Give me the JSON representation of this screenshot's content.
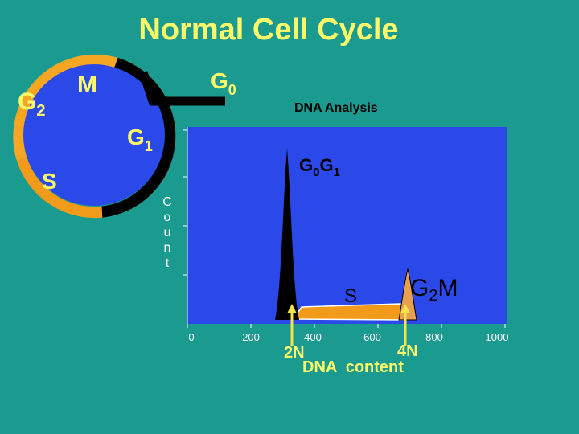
{
  "title": "Normal Cell Cycle",
  "cycle": {
    "phase_labels": {
      "g2": "G",
      "g2_sub": "2",
      "m": "M",
      "g0": "G",
      "g0_sub": "0",
      "g1": "G",
      "g1_sub": "1",
      "s": "S"
    },
    "colors": {
      "circle": "#2b49e8",
      "g2_arc": "#f5a623",
      "s_arc": "#f29a19",
      "m_g1_arc": "#000000",
      "label": "#fbf86a"
    }
  },
  "analysis": {
    "label": "DNA Analysis",
    "ylabel_letters": [
      "C",
      "o",
      "u",
      "n",
      "t"
    ],
    "peak_label": {
      "main": "G",
      "sub1": "0",
      "mid": "G",
      "sub2": "1"
    },
    "s_label": "S",
    "g2m_label": {
      "main": "G",
      "sub": "2",
      "tail": "M"
    },
    "x_ticks": [
      "0",
      "200",
      "400",
      "600",
      "800",
      "1000"
    ],
    "marker_2n": "2N",
    "marker_4n": "4N",
    "xlabel": "DNA  content",
    "colors": {
      "plot_bg": "#2b49e8",
      "peak": "#000000",
      "s_region": "#f29a19",
      "g2m_peak": "#e6a050",
      "arrow": "#f3e24a"
    }
  }
}
